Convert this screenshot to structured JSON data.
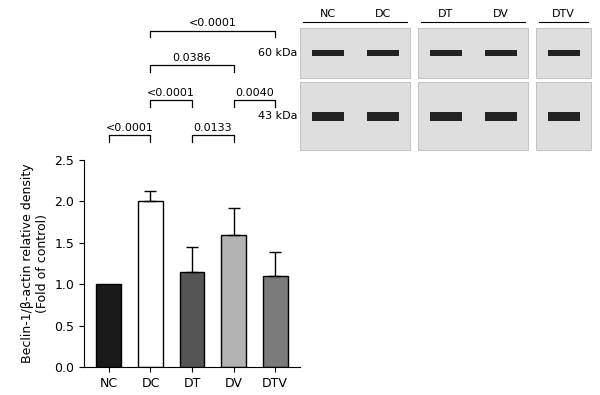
{
  "chart_data": {
    "type": "bar",
    "y_label": "Beclin-1/β-actin relative density\n(Fold of control)",
    "categories": [
      "NC",
      "DC",
      "DT",
      "DV",
      "DTV"
    ],
    "values": [
      1.0,
      2.0,
      1.15,
      1.6,
      1.1
    ],
    "error": [
      null,
      0.13,
      0.3,
      0.32,
      0.29
    ],
    "colors": [
      "#1a1a1a",
      "#ffffff",
      "#555555",
      "#b3b3b3",
      "#7a7a7a"
    ],
    "ylim": [
      0,
      2.5
    ],
    "yticks": [
      {
        "value": 0,
        "label": "0.0"
      },
      {
        "value": 0.5,
        "label": "0.5"
      },
      {
        "value": 1,
        "label": "1.0"
      },
      {
        "value": 1.5,
        "label": "1.5"
      },
      {
        "value": 2,
        "label": "2.0"
      },
      {
        "value": 2.5,
        "label": "2.5"
      }
    ],
    "annotations": [
      {
        "pair": [
          "NC",
          "DC"
        ],
        "text": "<0.0001"
      },
      {
        "pair": [
          "DT",
          "DV"
        ],
        "text": "0.0133"
      },
      {
        "pair": [
          "DC",
          "DT"
        ],
        "text": "<0.0001"
      },
      {
        "pair": [
          "DV",
          "DTV"
        ],
        "text": "0.0040"
      },
      {
        "pair": [
          "DC",
          "DV"
        ],
        "text": "0.0386"
      },
      {
        "pair": [
          "DC",
          "DTV"
        ],
        "text": "<0.0001"
      }
    ]
  },
  "blot": {
    "panels": [
      [
        "NC",
        "DC"
      ],
      [
        "DT",
        "DV"
      ],
      [
        "DTV"
      ]
    ],
    "rows": [
      "60 kDa",
      "43 kDa"
    ]
  }
}
